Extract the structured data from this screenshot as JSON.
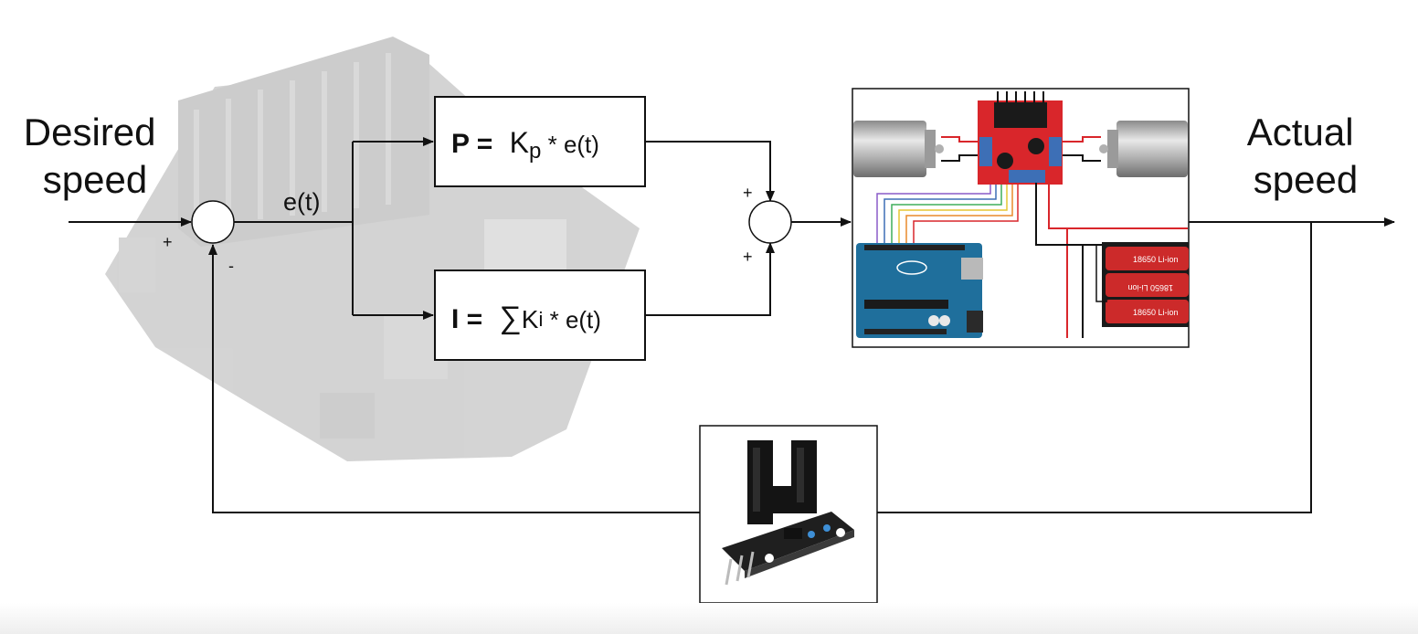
{
  "diagram": {
    "input_label": [
      "Desired",
      "speed"
    ],
    "output_label": [
      "Actual",
      "speed"
    ],
    "error_label": "e(t)",
    "sum1": {
      "plus": "+",
      "minus": "-"
    },
    "sum2": {
      "plus_top": "+",
      "plus_bottom": "+"
    },
    "p_block": {
      "name": "P =",
      "gain": "K",
      "gain_sub": "p",
      "rest": " * e(t)"
    },
    "i_block": {
      "name": "I =",
      "sigma": "∑",
      "gain": "K",
      "gain_sub": "i",
      "rest": " * e(t)"
    },
    "plant_images": [
      "dc-motor",
      "l298n-motor-driver",
      "arduino-uno",
      "18650 Li-ion battery pack",
      "jetson-nano-board"
    ],
    "battery_cells": [
      "18650 Li-ion",
      "18650 Li-ion",
      "18650 Li-ion"
    ],
    "sensor_image": "ir-slot-speed-sensor"
  },
  "colors": {
    "line": "#111111",
    "driver_red": "#d9262b",
    "arduino_blue": "#1f6f9c",
    "battery_red": "#cc2a2a"
  }
}
